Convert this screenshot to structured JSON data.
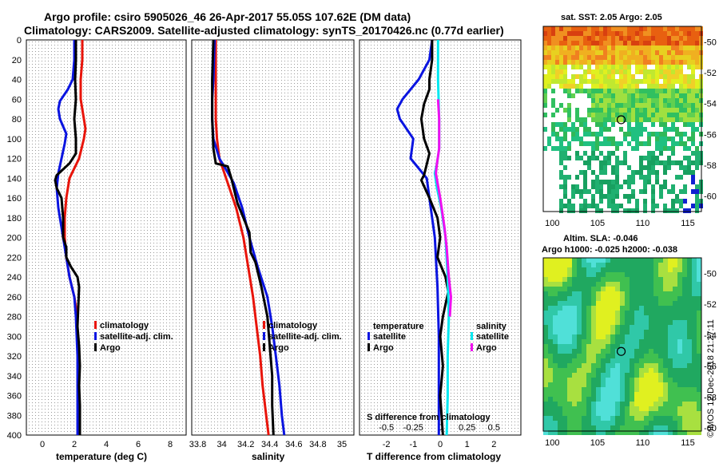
{
  "titles": {
    "line1": "Argo profile: csiro 5905026_46 26-Apr-2017 55.05S 107.62E (DM data)",
    "line2": "Climatology: CARS2009. Satellite-adjusted climatology: synTS_20170426.nc (0.77d earlier)"
  },
  "colors": {
    "climatology": "#e8140a",
    "satellite": "#0a14e0",
    "argo": "#000000",
    "sat_salinity": "#00e8f0",
    "argo_salinity_diff": "#f010f0"
  },
  "chart_data": [
    {
      "type": "line",
      "id": "temperature",
      "xlabel": "temperature (deg C)",
      "xlim": [
        -1,
        9
      ],
      "xticks": [
        0,
        2,
        4,
        6,
        8
      ],
      "xtick_labels": [
        "0",
        "2",
        "4",
        "6",
        "8"
      ],
      "ylim": [
        400,
        0
      ],
      "yticks": [
        0,
        20,
        40,
        60,
        80,
        100,
        120,
        140,
        160,
        180,
        200,
        220,
        240,
        260,
        280,
        300,
        320,
        340,
        360,
        380,
        400
      ],
      "grid": true,
      "legend": [
        "climatology",
        "satellite-adj. clim.",
        "Argo"
      ],
      "series": [
        {
          "name": "climatology",
          "color_key": "climatology",
          "points": [
            [
              2.5,
              0
            ],
            [
              2.5,
              20
            ],
            [
              2.4,
              40
            ],
            [
              2.4,
              60
            ],
            [
              2.6,
              80
            ],
            [
              2.7,
              90
            ],
            [
              2.6,
              100
            ],
            [
              2.3,
              120
            ],
            [
              1.7,
              140
            ],
            [
              1.5,
              160
            ],
            [
              1.4,
              180
            ],
            [
              1.4,
              200
            ],
            [
              1.5,
              220
            ],
            [
              1.7,
              240
            ],
            [
              2.0,
              260
            ],
            [
              2.2,
              280
            ],
            [
              2.2,
              300
            ],
            [
              2.25,
              320
            ],
            [
              2.3,
              340
            ],
            [
              2.3,
              360
            ],
            [
              2.3,
              380
            ],
            [
              2.3,
              400
            ]
          ]
        },
        {
          "name": "satellite-adj. clim.",
          "color_key": "satellite",
          "points": [
            [
              2.0,
              0
            ],
            [
              2.0,
              20
            ],
            [
              1.9,
              40
            ],
            [
              1.6,
              50
            ],
            [
              1.1,
              62
            ],
            [
              1.0,
              70
            ],
            [
              1.1,
              80
            ],
            [
              1.5,
              95
            ],
            [
              1.4,
              105
            ],
            [
              1.2,
              120
            ],
            [
              1.0,
              135
            ],
            [
              0.9,
              150
            ],
            [
              1.0,
              170
            ],
            [
              1.2,
              190
            ],
            [
              1.4,
              210
            ],
            [
              1.7,
              240
            ],
            [
              2.0,
              260
            ],
            [
              2.1,
              280
            ],
            [
              2.15,
              300
            ],
            [
              2.2,
              320
            ],
            [
              2.2,
              340
            ],
            [
              2.2,
              360
            ],
            [
              2.2,
              380
            ],
            [
              2.2,
              400
            ]
          ]
        },
        {
          "name": "Argo",
          "color_key": "argo",
          "points": [
            [
              2.1,
              0
            ],
            [
              2.1,
              20
            ],
            [
              2.05,
              40
            ],
            [
              2.1,
              60
            ],
            [
              2.0,
              80
            ],
            [
              2.1,
              100
            ],
            [
              2.1,
              115
            ],
            [
              1.7,
              125
            ],
            [
              0.9,
              137
            ],
            [
              0.8,
              142
            ],
            [
              0.9,
              150
            ],
            [
              1.2,
              160
            ],
            [
              1.3,
              180
            ],
            [
              1.3,
              200
            ],
            [
              1.5,
              210
            ],
            [
              1.5,
              220
            ],
            [
              1.8,
              230
            ],
            [
              2.2,
              240
            ],
            [
              2.3,
              250
            ],
            [
              2.25,
              270
            ],
            [
              2.2,
              290
            ],
            [
              2.3,
              310
            ],
            [
              2.35,
              330
            ],
            [
              2.3,
              350
            ],
            [
              2.35,
              370
            ],
            [
              2.35,
              390
            ],
            [
              2.35,
              400
            ]
          ]
        }
      ]
    },
    {
      "type": "line",
      "id": "salinity",
      "xlabel": "salinity",
      "xlim": [
        33.75,
        35.1
      ],
      "xticks": [
        33.8,
        34,
        34.2,
        34.4,
        34.6,
        34.8,
        35
      ],
      "xtick_labels": [
        "33.8",
        "34",
        "34.2",
        "34.4",
        "34.6",
        "34.8",
        "35"
      ],
      "ylim": [
        400,
        0
      ],
      "grid": true,
      "legend": [
        "climatology",
        "satellite-adj. clim.",
        "Argo"
      ],
      "series": [
        {
          "name": "climatology",
          "color_key": "climatology",
          "points": [
            [
              33.95,
              0
            ],
            [
              33.95,
              40
            ],
            [
              33.95,
              80
            ],
            [
              33.96,
              100
            ],
            [
              33.98,
              120
            ],
            [
              34.05,
              145
            ],
            [
              34.12,
              170
            ],
            [
              34.18,
              200
            ],
            [
              34.22,
              230
            ],
            [
              34.26,
              260
            ],
            [
              34.29,
              290
            ],
            [
              34.32,
              320
            ],
            [
              34.34,
              350
            ],
            [
              34.37,
              380
            ],
            [
              34.39,
              400
            ]
          ]
        },
        {
          "name": "satellite-adj. clim.",
          "color_key": "satellite",
          "points": [
            [
              33.94,
              0
            ],
            [
              33.93,
              40
            ],
            [
              33.92,
              60
            ],
            [
              33.92,
              80
            ],
            [
              33.93,
              100
            ],
            [
              33.98,
              120
            ],
            [
              34.03,
              130
            ],
            [
              34.1,
              145
            ],
            [
              34.17,
              170
            ],
            [
              34.23,
              200
            ],
            [
              34.3,
              230
            ],
            [
              34.38,
              260
            ],
            [
              34.42,
              290
            ],
            [
              34.45,
              320
            ],
            [
              34.48,
              350
            ],
            [
              34.5,
              380
            ],
            [
              34.52,
              400
            ]
          ]
        },
        {
          "name": "Argo",
          "color_key": "argo",
          "points": [
            [
              33.93,
              0
            ],
            [
              33.92,
              40
            ],
            [
              33.92,
              80
            ],
            [
              33.93,
              110
            ],
            [
              33.95,
              125
            ],
            [
              34.05,
              128
            ],
            [
              34.08,
              140
            ],
            [
              34.13,
              165
            ],
            [
              34.18,
              180
            ],
            [
              34.23,
              195
            ],
            [
              34.24,
              215
            ],
            [
              34.28,
              225
            ],
            [
              34.33,
              250
            ],
            [
              34.38,
              280
            ],
            [
              34.4,
              310
            ],
            [
              34.42,
              340
            ],
            [
              34.42,
              370
            ],
            [
              34.43,
              400
            ]
          ]
        }
      ]
    },
    {
      "type": "line",
      "id": "difference",
      "xlabel": "T difference from climatology",
      "xlim": [
        -3,
        3
      ],
      "xticks": [
        -2,
        -1,
        0,
        1,
        2
      ],
      "xtick_labels": [
        "-2",
        "-1",
        "0",
        "1",
        "2"
      ],
      "top_axis_label": "S difference from climatology",
      "top_ticks": [
        -0.5,
        -0.25,
        0,
        0.25,
        0.5
      ],
      "top_tick_labels": [
        "-0.5",
        "-0.25",
        "0",
        "0.25",
        "0.5"
      ],
      "ylim": [
        400,
        0
      ],
      "grid": true,
      "legend_temperature_heading": "temperature",
      "legend_salinity_heading": "salinity",
      "legend_temperature": [
        "satellite",
        "Argo"
      ],
      "legend_salinity": [
        "satellite",
        "Argo"
      ],
      "series": [
        {
          "name": "satellite",
          "group": "temperature",
          "color_key": "satellite",
          "points": [
            [
              -0.3,
              0
            ],
            [
              -0.4,
              20
            ],
            [
              -0.8,
              40
            ],
            [
              -1.4,
              60
            ],
            [
              -1.6,
              70
            ],
            [
              -1.5,
              80
            ],
            [
              -1.0,
              100
            ],
            [
              -1.1,
              120
            ],
            [
              -0.5,
              140
            ],
            [
              -0.4,
              160
            ],
            [
              -0.2,
              200
            ],
            [
              -0.1,
              250
            ],
            [
              -0.05,
              300
            ],
            [
              -0.05,
              350
            ],
            [
              -0.05,
              400
            ]
          ]
        },
        {
          "name": "Argo",
          "group": "temperature",
          "color_key": "argo",
          "points": [
            [
              -0.3,
              0
            ],
            [
              -0.3,
              20
            ],
            [
              -0.4,
              40
            ],
            [
              -0.4,
              50
            ],
            [
              -0.6,
              65
            ],
            [
              -0.7,
              80
            ],
            [
              -0.6,
              100
            ],
            [
              -0.4,
              115
            ],
            [
              -0.6,
              137
            ],
            [
              -0.7,
              142
            ],
            [
              -0.4,
              160
            ],
            [
              -0.1,
              180
            ],
            [
              0.0,
              200
            ],
            [
              -0.1,
              220
            ],
            [
              0.2,
              240
            ],
            [
              0.3,
              255
            ],
            [
              0.1,
              280
            ],
            [
              0.0,
              300
            ],
            [
              0.1,
              330
            ],
            [
              0.0,
              360
            ],
            [
              0.1,
              400
            ]
          ]
        },
        {
          "name": "satellite",
          "group": "salinity",
          "color_key": "sat_salinity",
          "points": [
            [
              -0.02,
              0
            ],
            [
              -0.02,
              40
            ],
            [
              -0.01,
              80
            ],
            [
              -0.01,
              110
            ],
            [
              -0.03,
              125
            ],
            [
              -0.05,
              135
            ],
            [
              -0.03,
              150
            ],
            [
              0.01,
              170
            ],
            [
              0.05,
              200
            ],
            [
              0.07,
              240
            ],
            [
              0.08,
              280
            ],
            [
              0.07,
              320
            ],
            [
              0.07,
              360
            ],
            [
              0.06,
              400
            ]
          ]
        },
        {
          "name": "Argo",
          "group": "salinity",
          "color_key": "argo_salinity_diff",
          "points": [
            [
              -0.02,
              60
            ],
            [
              -0.01,
              80
            ],
            [
              -0.01,
              110
            ],
            [
              -0.03,
              125
            ],
            [
              -0.04,
              135
            ],
            [
              0.0,
              160
            ],
            [
              0.04,
              190
            ],
            [
              0.06,
              210
            ],
            [
              0.08,
              240
            ],
            [
              0.1,
              260
            ],
            [
              0.09,
              280
            ]
          ]
        }
      ]
    },
    {
      "type": "heatmap",
      "id": "sst-map",
      "title": "sat. SST: 2.05 Argo: 2.05",
      "xlim": [
        99,
        116.5
      ],
      "ylim": [
        -61,
        -49
      ],
      "xticks": [
        100,
        105,
        110,
        115
      ],
      "xtick_labels": [
        "100",
        "105",
        "110",
        "115"
      ],
      "yticks": [
        -50,
        -52,
        -54,
        -56,
        -58,
        -60
      ],
      "ytick_labels": [
        "-50",
        "-52",
        "-54",
        "-56",
        "-58",
        "-60"
      ],
      "marker": {
        "lon": 107.62,
        "lat": -55.05
      }
    },
    {
      "type": "heatmap",
      "id": "sla-map",
      "title": "Altim. SLA: -0.046",
      "subtitle": "Argo h1000: -0.025 h2000: -0.038",
      "xlim": [
        99,
        116.5
      ],
      "ylim": [
        -60.2,
        -49
      ],
      "xticks": [
        100,
        105,
        110,
        115
      ],
      "xtick_labels": [
        "100",
        "105",
        "110",
        "115"
      ],
      "yticks": [
        -50,
        -52,
        -54,
        -56,
        -58,
        -60
      ],
      "ytick_labels": [
        "-50",
        "-52",
        "-54",
        "-56",
        "-58",
        "-60"
      ],
      "marker": {
        "lon": 107.62,
        "lat": -55.05
      }
    }
  ],
  "credit": "©IMOS 12-Dec-2018 21:27:11"
}
